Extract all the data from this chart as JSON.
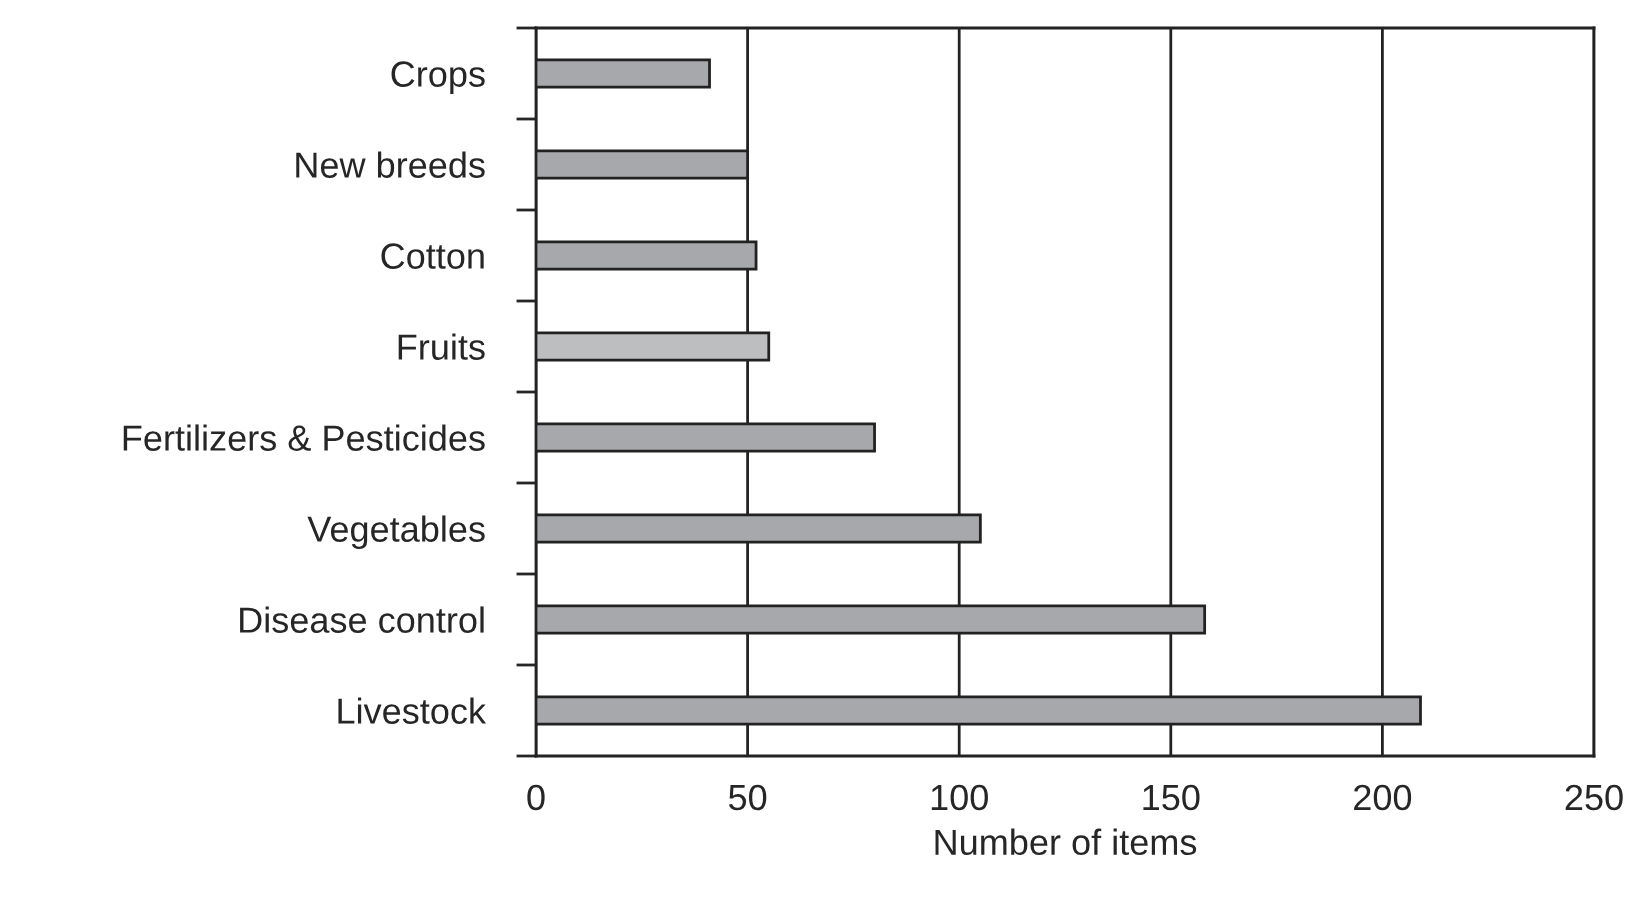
{
  "chart_data": {
    "type": "bar",
    "orientation": "horizontal",
    "xlabel": "Number of items",
    "categories": [
      "Crops",
      "New breeds",
      "Cotton",
      "Fruits",
      "Fertilizers & Pesticides",
      "Vegetables",
      "Disease control",
      "Livestock"
    ],
    "values": [
      41,
      50,
      52,
      55,
      80,
      105,
      158,
      209
    ],
    "colors": [
      "#a7a8ab",
      "#a7a8ab",
      "#a7a8ab",
      "#bdbec0",
      "#a7a8ab",
      "#a7a8ab",
      "#a7a8ab",
      "#a7a8ab"
    ],
    "xlim": [
      0,
      250
    ],
    "xticks": [
      0,
      50,
      100,
      150,
      200,
      250
    ],
    "grid": "x"
  }
}
